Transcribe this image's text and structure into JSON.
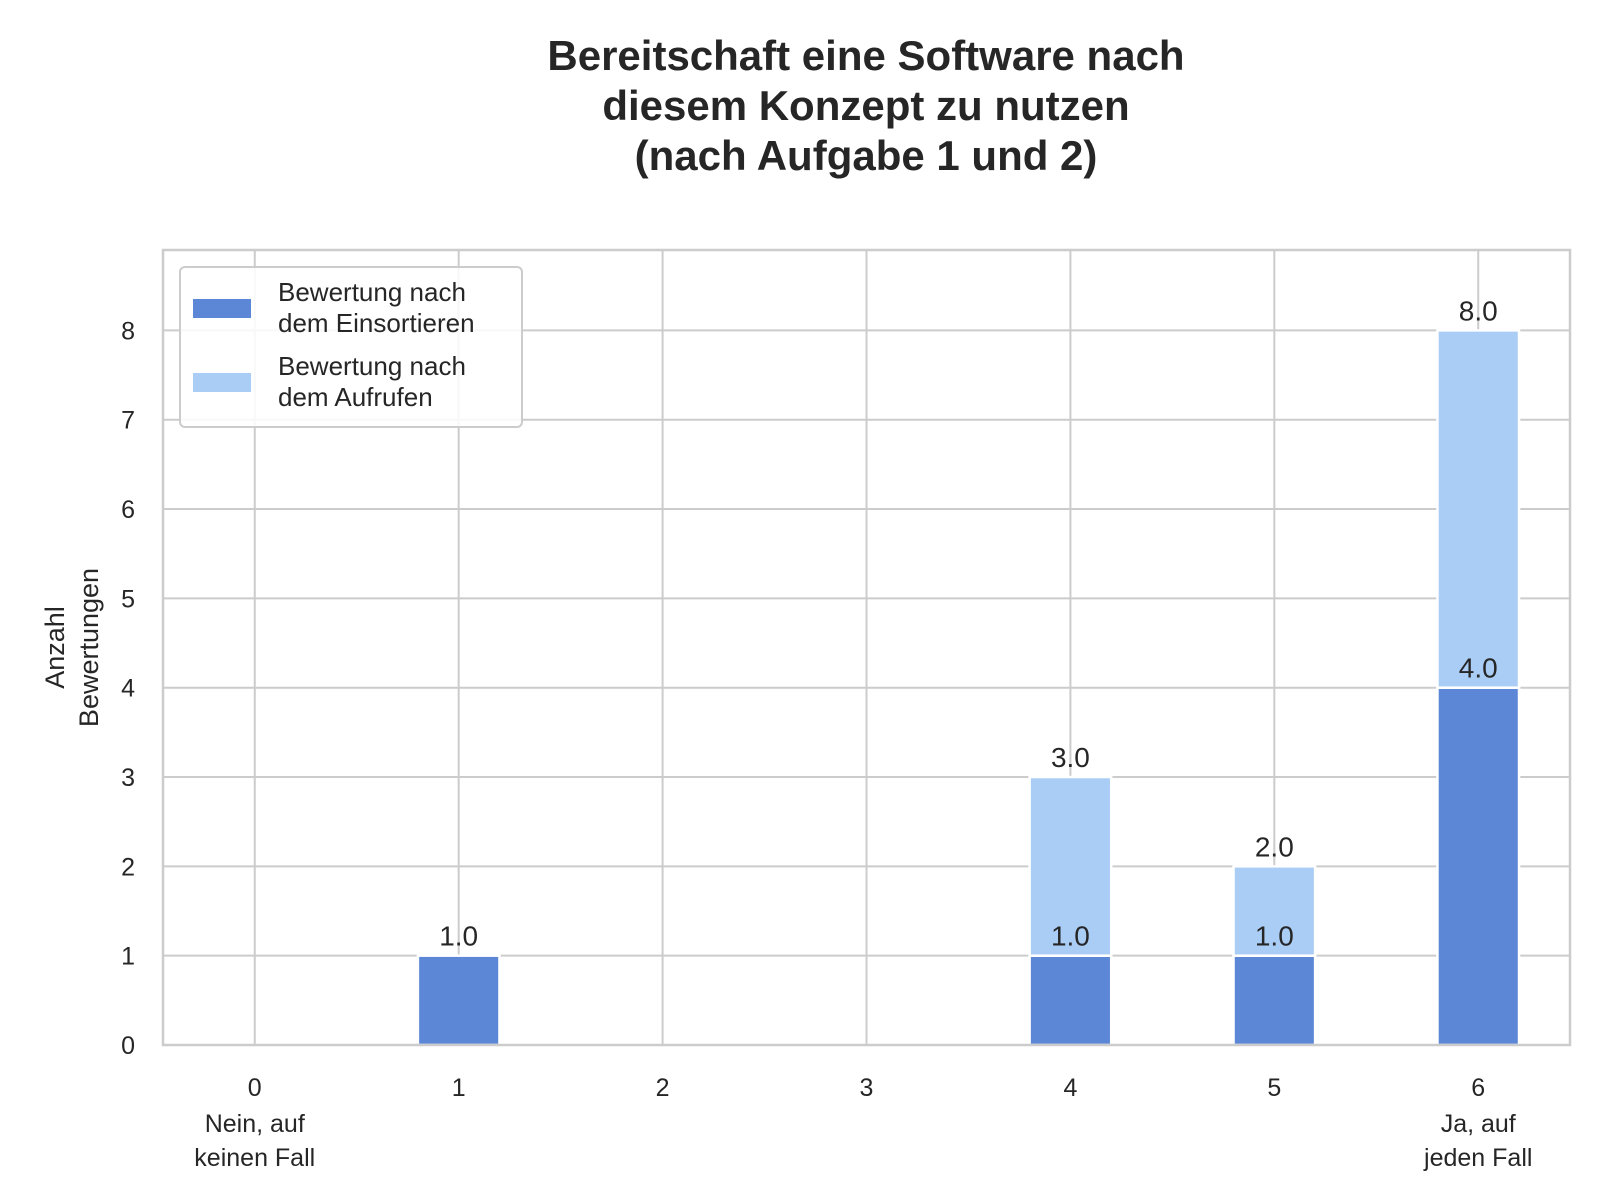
{
  "chart_data": {
    "type": "bar",
    "stacked": true,
    "title_lines": [
      "Bereitschaft eine Software nach",
      "diesem Konzept zu nutzen",
      "(nach Aufgabe 1 und 2)"
    ],
    "ylabel_lines": [
      "Anzahl",
      "Bewertungen"
    ],
    "xlabel": "",
    "x": [
      0,
      1,
      2,
      3,
      4,
      5,
      6
    ],
    "x_tick_labels": [
      "0",
      "1",
      "2",
      "3",
      "4",
      "5",
      "6"
    ],
    "x_tick_sublabels": [
      [
        "Nein, auf",
        "keinen Fall"
      ],
      [],
      [],
      [],
      [],
      [],
      [
        "Ja, auf",
        "jeden Fall"
      ]
    ],
    "ylim": [
      0,
      8.9
    ],
    "yticks": [
      0,
      1,
      2,
      3,
      4,
      5,
      6,
      7,
      8
    ],
    "grid": true,
    "legend_position": "upper-left",
    "series": [
      {
        "name_lines": [
          "Bewertung nach",
          "dem Einsortieren"
        ],
        "color": "#5b87d6",
        "values": [
          0,
          1,
          0,
          0,
          1,
          1,
          4
        ],
        "labels": [
          "",
          "1.0",
          "",
          "",
          "1.0",
          "1.0",
          "4.0"
        ]
      },
      {
        "name_lines": [
          "Bewertung nach",
          "dem Aufrufen"
        ],
        "color": "#aacdf5",
        "values": [
          0,
          0,
          0,
          0,
          2,
          1,
          4
        ],
        "labels": [
          "",
          "",
          "",
          "",
          "3.0",
          "2.0",
          "8.0"
        ]
      }
    ]
  }
}
